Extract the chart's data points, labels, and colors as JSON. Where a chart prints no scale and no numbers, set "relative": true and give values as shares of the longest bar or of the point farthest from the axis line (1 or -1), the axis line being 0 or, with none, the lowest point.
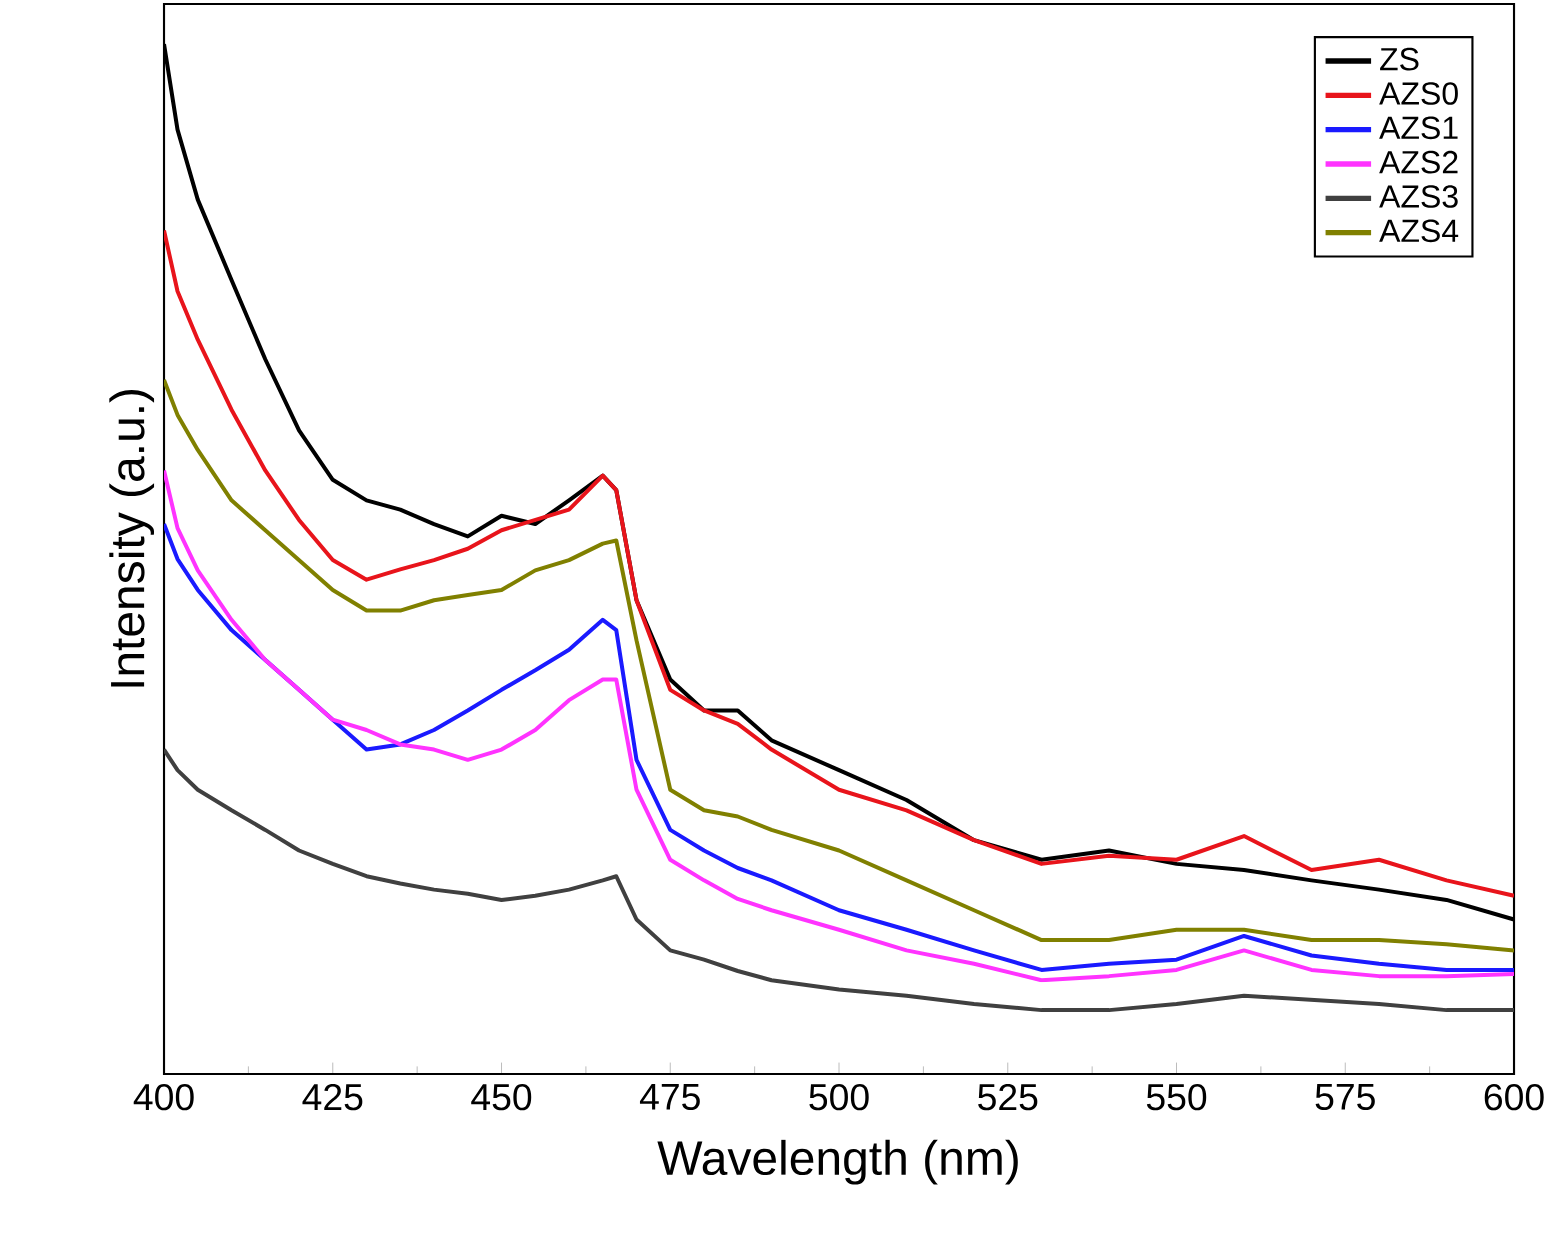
{
  "chart_data": {
    "type": "line",
    "relative": true,
    "xlabel": "Wavelength (nm)",
    "ylabel": "Intensity (a.u.)",
    "xlim": [
      400,
      600
    ],
    "xticks": [
      400,
      425,
      450,
      475,
      500,
      525,
      550,
      575,
      600
    ],
    "legend": "top right",
    "grid": false,
    "x": [
      400,
      402,
      405,
      410,
      415,
      420,
      425,
      430,
      435,
      440,
      445,
      450,
      455,
      460,
      465,
      467,
      470,
      475,
      480,
      485,
      490,
      500,
      510,
      520,
      530,
      540,
      550,
      560,
      570,
      580,
      590,
      600
    ],
    "series": [
      {
        "name": "ZS",
        "color": "#000000",
        "values": [
          1.0,
          0.917,
          0.849,
          0.771,
          0.694,
          0.625,
          0.577,
          0.557,
          0.548,
          0.534,
          0.522,
          0.542,
          0.534,
          0.557,
          0.581,
          0.567,
          0.46,
          0.383,
          0.353,
          0.353,
          0.324,
          0.295,
          0.266,
          0.227,
          0.208,
          0.217,
          0.204,
          0.198,
          0.188,
          0.179,
          0.169,
          0.15
        ]
      },
      {
        "name": "AZS0",
        "color": "#e8141b",
        "values": [
          0.819,
          0.76,
          0.713,
          0.645,
          0.586,
          0.538,
          0.499,
          0.48,
          0.49,
          0.499,
          0.51,
          0.528,
          0.538,
          0.548,
          0.581,
          0.567,
          0.46,
          0.373,
          0.353,
          0.34,
          0.315,
          0.276,
          0.256,
          0.227,
          0.204,
          0.212,
          0.208,
          0.231,
          0.198,
          0.208,
          0.188,
          0.173
        ]
      },
      {
        "name": "AZS1",
        "color": "#1a1aff",
        "values": [
          0.534,
          0.5,
          0.47,
          0.431,
          0.402,
          0.373,
          0.344,
          0.315,
          0.32,
          0.334,
          0.353,
          0.373,
          0.392,
          0.412,
          0.441,
          0.431,
          0.305,
          0.237,
          0.217,
          0.2,
          0.188,
          0.159,
          0.14,
          0.12,
          0.101,
          0.107,
          0.111,
          0.134,
          0.115,
          0.107,
          0.101,
          0.101
        ]
      },
      {
        "name": "AZS2",
        "color": "#ff33ff",
        "values": [
          0.586,
          0.53,
          0.489,
          0.441,
          0.402,
          0.373,
          0.344,
          0.334,
          0.32,
          0.315,
          0.305,
          0.315,
          0.334,
          0.363,
          0.383,
          0.383,
          0.276,
          0.208,
          0.188,
          0.17,
          0.159,
          0.14,
          0.12,
          0.107,
          0.091,
          0.095,
          0.101,
          0.12,
          0.101,
          0.095,
          0.095,
          0.097
        ]
      },
      {
        "name": "AZS3",
        "color": "#404040",
        "values": [
          0.315,
          0.295,
          0.276,
          0.256,
          0.237,
          0.217,
          0.204,
          0.192,
          0.185,
          0.179,
          0.175,
          0.169,
          0.173,
          0.179,
          0.188,
          0.192,
          0.15,
          0.12,
          0.111,
          0.1,
          0.091,
          0.082,
          0.076,
          0.068,
          0.062,
          0.062,
          0.068,
          0.076,
          0.072,
          0.068,
          0.062,
          0.062
        ]
      },
      {
        "name": "AZS4",
        "color": "#808000",
        "values": [
          0.674,
          0.64,
          0.606,
          0.557,
          0.528,
          0.499,
          0.47,
          0.45,
          0.45,
          0.46,
          0.465,
          0.47,
          0.489,
          0.499,
          0.515,
          0.518,
          0.421,
          0.276,
          0.256,
          0.25,
          0.237,
          0.217,
          0.188,
          0.159,
          0.13,
          0.13,
          0.14,
          0.14,
          0.13,
          0.13,
          0.126,
          0.12
        ]
      }
    ]
  }
}
